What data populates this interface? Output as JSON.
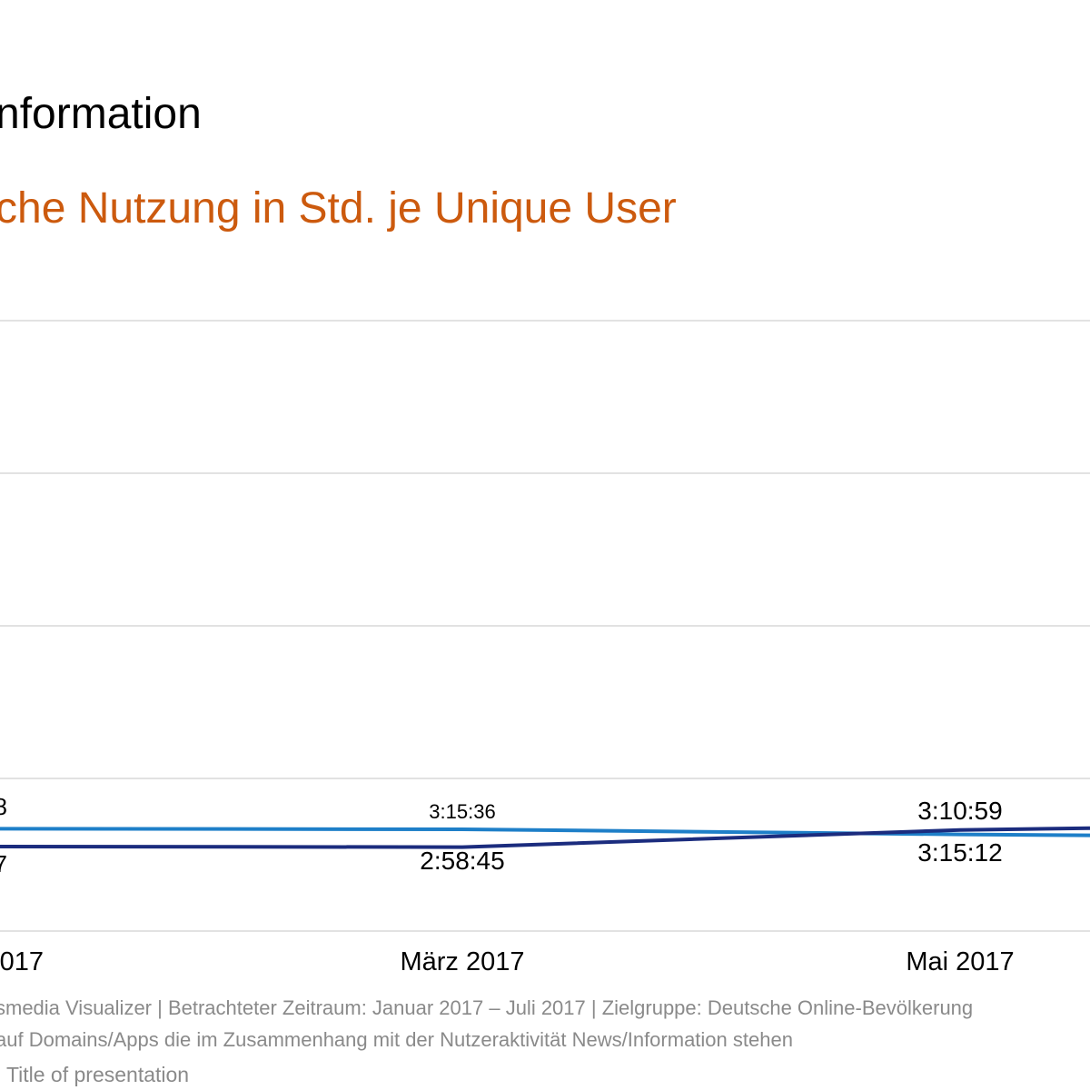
{
  "header": {
    "title": "nformation",
    "subtitle": "che Nutzung in Std. je Unique User"
  },
  "chart_data": {
    "type": "line",
    "x": [
      "2017",
      "März 2017",
      "Mai 2017"
    ],
    "series": [
      {
        "color": "#1e7fc8",
        "labels": [
          "8",
          "3:15:36",
          "3:10:59"
        ],
        "values_hours": [
          3.27,
          3.26,
          3.18
        ]
      },
      {
        "color": "#1b2c7e",
        "labels": [
          "7",
          "2:58:45",
          "3:15:12"
        ],
        "values_hours": [
          2.99,
          2.98,
          3.25
        ]
      }
    ],
    "grid": true,
    "legend": "none"
  },
  "colors": {
    "title": "#000000",
    "subtitle": "#cc5a0e",
    "grid": "#d9d9d9",
    "footnote": "#8a8a8a"
  },
  "footer": {
    "source": "smedia Visualizer | Betrachteter Zeitraum: Januar 2017 – Juli 2017 | Zielgruppe: Deutsche Online-Bevölkerung",
    "note": "auf Domains/Apps die im Zusammenhang mit der Nutzeraktivität News/Information stehen",
    "presentation": "| Title of presentation"
  }
}
